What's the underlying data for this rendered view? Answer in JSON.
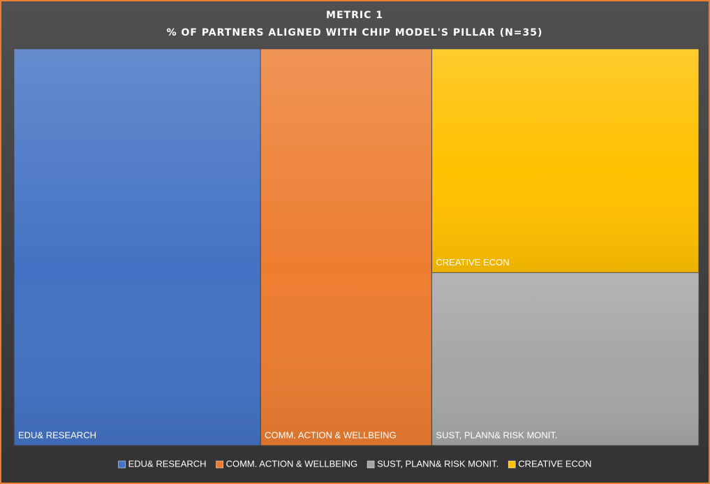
{
  "chart_data": {
    "type": "treemap",
    "title": "METRIC 1",
    "subtitle": "% OF PARTNERS ALIGNED WITH CHIP MODEL'S PILLAR (N=35)",
    "categories": [
      "EDU& RESEARCH",
      "COMM. ACTION &  WELLBEING",
      "SUST, PLANN& RISK MONIT.",
      "CREATIVE ECON"
    ],
    "values": [
      36,
      25,
      17,
      22
    ],
    "colors": [
      "#4472c4",
      "#ed7d31",
      "#a5a5a5",
      "#ffc000"
    ],
    "legend": "bottom"
  }
}
